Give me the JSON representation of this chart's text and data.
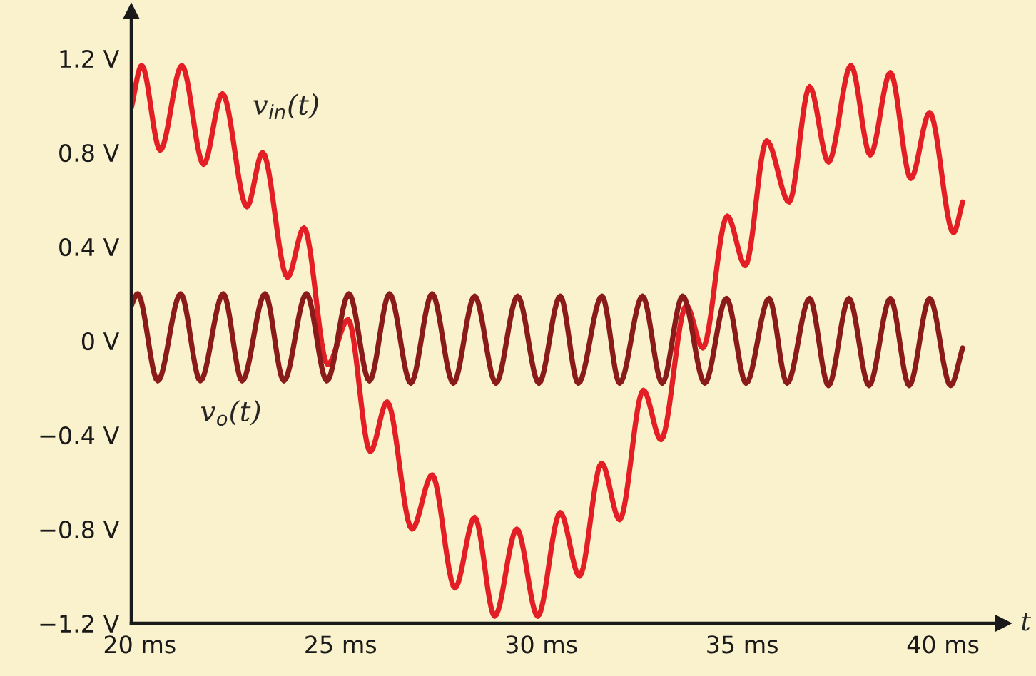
{
  "chart_data": {
    "type": "line",
    "xlabel": "t",
    "xlim": [
      19.79,
      41.5
    ],
    "ylim": [
      -1.2,
      1.4
    ],
    "xticks": [
      {
        "value": 20,
        "label": "20 ms"
      },
      {
        "value": 25,
        "label": "25 ms"
      },
      {
        "value": 30,
        "label": "30 ms"
      },
      {
        "value": 35,
        "label": "35 ms"
      },
      {
        "value": 40,
        "label": "40 ms"
      }
    ],
    "yticks": [
      {
        "value": -1.2,
        "label": "−1.2 V"
      },
      {
        "value": -0.8,
        "label": "−0.8 V"
      },
      {
        "value": -0.4,
        "label": "−0.4 V"
      },
      {
        "value": 0,
        "label": "0 V"
      },
      {
        "value": 0.4,
        "label": "0.4 V"
      },
      {
        "value": 0.8,
        "label": "0.8 V"
      },
      {
        "value": 1.2,
        "label": "1.2 V"
      }
    ],
    "grid": false,
    "legend": false,
    "marker": "none",
    "line_style": "solid",
    "series": [
      {
        "color": "#e31e24",
        "x": [
          19.79,
          20.05,
          20.51,
          21.05,
          21.59,
          22.06,
          22.67,
          23.06,
          23.68,
          24.09,
          24.68,
          25.19,
          25.74,
          26.16,
          26.78,
          27.28,
          27.85,
          28.34,
          28.84,
          29.39,
          29.91,
          30.47,
          30.95,
          31.5,
          31.95,
          32.54,
          32.98,
          33.61,
          34.02,
          34.63,
          35.08,
          35.61,
          36.17,
          36.68,
          37.15,
          37.71,
          38.19,
          38.69,
          39.2,
          39.67,
          40.26,
          40.49
        ],
        "values": [
          0.99,
          1.17,
          0.81,
          1.17,
          0.75,
          1.05,
          0.57,
          0.8,
          0.27,
          0.48,
          -0.1,
          0.09,
          -0.47,
          -0.26,
          -0.8,
          -0.57,
          -1.05,
          -0.75,
          -1.17,
          -0.8,
          -1.17,
          -0.73,
          -1.0,
          -0.52,
          -0.76,
          -0.21,
          -0.42,
          0.15,
          -0.03,
          0.53,
          0.32,
          0.85,
          0.59,
          1.08,
          0.76,
          1.17,
          0.79,
          1.14,
          0.69,
          0.97,
          0.46,
          0.59
        ]
      },
      {
        "color": "#8b1a1a",
        "x": [
          19.79,
          19.95,
          20.45,
          21.02,
          21.51,
          22.08,
          22.55,
          23.12,
          23.59,
          24.15,
          24.66,
          25.21,
          25.72,
          26.22,
          26.75,
          27.28,
          27.81,
          28.34,
          28.87,
          29.41,
          29.94,
          30.47,
          30.92,
          31.51,
          31.95,
          32.52,
          33.01,
          33.52,
          34.07,
          34.61,
          35.1,
          35.67,
          36.12,
          36.68,
          37.15,
          37.66,
          38.16,
          38.69,
          39.16,
          39.67,
          40.19,
          40.49
        ],
        "values": [
          0.15,
          0.2,
          -0.17,
          0.2,
          -0.17,
          0.2,
          -0.17,
          0.2,
          -0.17,
          0.2,
          -0.17,
          0.2,
          -0.17,
          0.2,
          -0.18,
          0.2,
          -0.18,
          0.19,
          -0.18,
          0.19,
          -0.18,
          0.19,
          -0.18,
          0.19,
          -0.18,
          0.19,
          -0.18,
          0.19,
          -0.18,
          0.18,
          -0.18,
          0.18,
          -0.18,
          0.18,
          -0.19,
          0.18,
          -0.19,
          0.18,
          -0.19,
          0.18,
          -0.19,
          -0.03
        ]
      }
    ],
    "annotations": [
      "v$_{in}$(t)",
      "v$_{o}$(t)"
    ]
  }
}
